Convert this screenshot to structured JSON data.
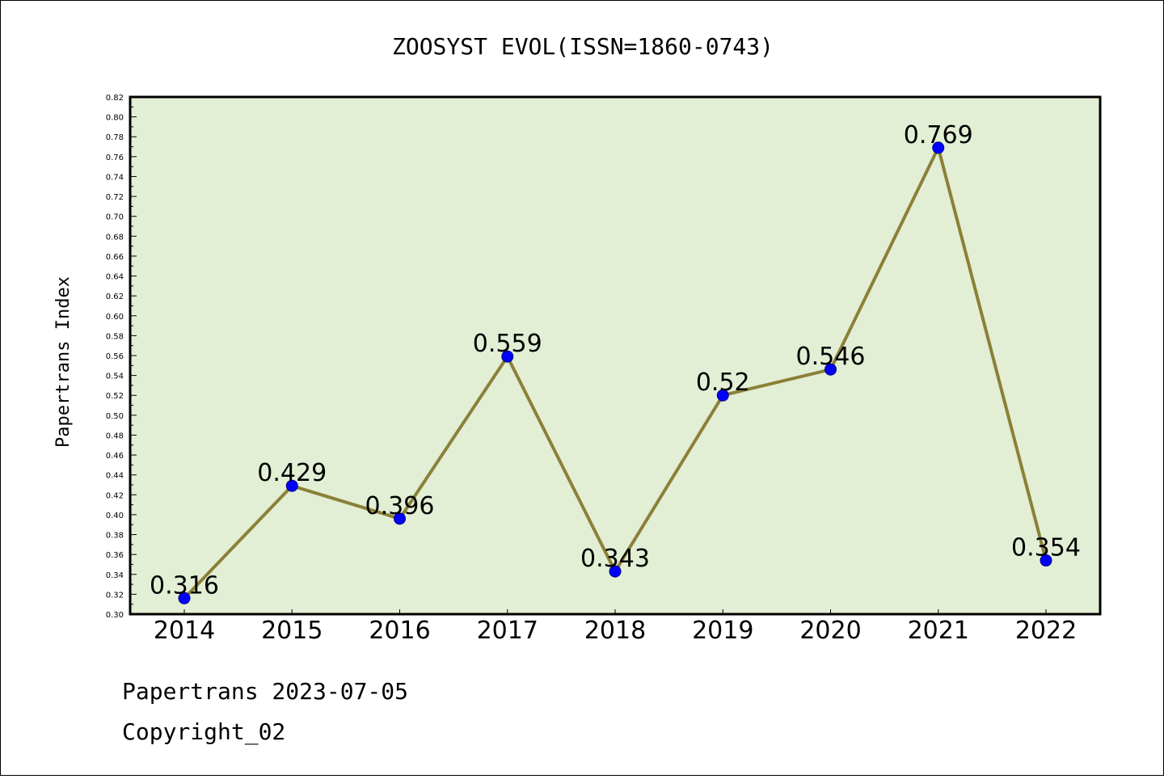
{
  "chart_data": {
    "type": "line",
    "title": "ZOOSYST EVOL(ISSN=1860-0743)",
    "xlabel": "",
    "ylabel": "Papertrans Index",
    "categories": [
      "2014",
      "2015",
      "2016",
      "2017",
      "2018",
      "2019",
      "2020",
      "2021",
      "2022"
    ],
    "series": [
      {
        "values": [
          0.316,
          0.429,
          0.396,
          0.559,
          0.343,
          0.52,
          0.546,
          0.769,
          0.354
        ]
      }
    ],
    "data_labels": [
      "0.316",
      "0.429",
      "0.396",
      "0.559",
      "0.343",
      "0.52",
      "0.546",
      "0.769",
      "0.354"
    ],
    "ylim": [
      0.3,
      0.82
    ],
    "yticks": [
      "0.30",
      "0.32",
      "0.34",
      "0.36",
      "0.38",
      "0.40",
      "0.42",
      "0.44",
      "0.46",
      "0.48",
      "0.50",
      "0.52",
      "0.54",
      "0.56",
      "0.58",
      "0.60",
      "0.62",
      "0.64",
      "0.66",
      "0.68",
      "0.70",
      "0.72",
      "0.74",
      "0.76",
      "0.78",
      "0.80",
      "0.82"
    ],
    "grid": false,
    "colors": {
      "plot_background": "#e2efd5",
      "line": "#8b8038",
      "marker": "#0000ff"
    }
  },
  "footer": {
    "line1": "Papertrans 2023-07-05",
    "line2": "Copyright_02"
  }
}
